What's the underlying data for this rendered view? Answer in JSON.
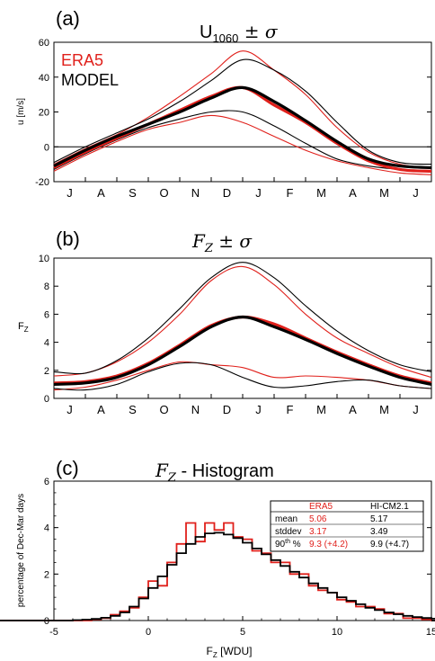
{
  "chart_data": [
    {
      "type": "line",
      "panel_label": "(a)",
      "title_main": "U",
      "title_sub": "1060",
      "title_tail": " ± σ",
      "ylabel": "u [m/s]",
      "ylim": [
        -20,
        60
      ],
      "yticks": [
        -20,
        0,
        20,
        40,
        60
      ],
      "xticks": [
        "J",
        "A",
        "S",
        "O",
        "N",
        "D",
        "J",
        "F",
        "M",
        "A",
        "M",
        "J"
      ],
      "legend": [
        {
          "name": "ERA5",
          "color": "#e0201b"
        },
        {
          "name": "MODEL",
          "color": "#000000"
        }
      ],
      "zero_line": true,
      "t": [
        0,
        1,
        2,
        3,
        4,
        5,
        6,
        7,
        8,
        9,
        10,
        11,
        12
      ],
      "series": [
        {
          "name": "ERA5",
          "color": "#e0201b",
          "role": "mean",
          "values": [
            -12,
            -3,
            5,
            13,
            21,
            29,
            34,
            24,
            14,
            2,
            -8,
            -13,
            -14
          ]
        },
        {
          "name": "ERA5",
          "color": "#e0201b",
          "role": "mean+sigma",
          "values": [
            -10,
            -1,
            7,
            17,
            29,
            42,
            55,
            44,
            30,
            11,
            -3,
            -10,
            -12
          ]
        },
        {
          "name": "ERA5",
          "color": "#e0201b",
          "role": "mean-sigma",
          "values": [
            -14,
            -5,
            3,
            10,
            14,
            18,
            14,
            6,
            -2,
            -8,
            -12,
            -15,
            -16
          ]
        },
        {
          "name": "MODEL",
          "color": "#000000",
          "role": "mean",
          "values": [
            -11,
            -2,
            6,
            13,
            20,
            28,
            34,
            26,
            15,
            3,
            -7,
            -11,
            -12
          ]
        },
        {
          "name": "MODEL",
          "color": "#000000",
          "role": "mean+sigma",
          "values": [
            -9,
            0,
            8,
            16,
            26,
            38,
            50,
            44,
            32,
            14,
            -2,
            -9,
            -10
          ]
        },
        {
          "name": "MODEL",
          "color": "#000000",
          "role": "mean-sigma",
          "values": [
            -13,
            -4,
            4,
            11,
            16,
            20,
            20,
            12,
            2,
            -7,
            -11,
            -13,
            -14
          ]
        }
      ]
    },
    {
      "type": "line",
      "panel_label": "(b)",
      "title_main": "F",
      "title_sub": "Z",
      "title_tail": " ± σ",
      "ylabel": "F",
      "ylabel_sub": "Z",
      "ylim": [
        0,
        10
      ],
      "yticks": [
        0,
        2,
        4,
        6,
        8,
        10
      ],
      "xticks": [
        "J",
        "A",
        "S",
        "O",
        "N",
        "D",
        "J",
        "F",
        "M",
        "A",
        "M",
        "J"
      ],
      "t": [
        0,
        1,
        2,
        3,
        4,
        5,
        6,
        7,
        8,
        9,
        10,
        11,
        12
      ],
      "series": [
        {
          "name": "ERA5",
          "color": "#e0201b",
          "role": "mean",
          "values": [
            1.1,
            1.2,
            1.6,
            2.5,
            3.8,
            5.2,
            5.8,
            5.3,
            4.3,
            3.3,
            2.4,
            1.6,
            1.1
          ]
        },
        {
          "name": "ERA5",
          "color": "#e0201b",
          "role": "mean+sigma",
          "values": [
            1.6,
            1.8,
            2.6,
            4.0,
            6.0,
            8.4,
            9.4,
            8.1,
            6.0,
            4.3,
            3.2,
            2.2,
            1.5
          ]
        },
        {
          "name": "ERA5",
          "color": "#e0201b",
          "role": "mean-sigma",
          "values": [
            0.6,
            0.8,
            1.3,
            2.0,
            2.6,
            2.4,
            2.2,
            1.5,
            1.6,
            1.5,
            1.3,
            0.9,
            0.7
          ]
        },
        {
          "name": "MODEL",
          "color": "#000000",
          "role": "mean",
          "values": [
            1.0,
            1.1,
            1.5,
            2.4,
            3.7,
            5.1,
            5.8,
            5.1,
            4.2,
            3.2,
            2.3,
            1.5,
            1.0
          ]
        },
        {
          "name": "MODEL",
          "color": "#000000",
          "role": "mean+sigma",
          "values": [
            1.9,
            1.8,
            2.7,
            4.3,
            6.4,
            8.6,
            9.7,
            8.6,
            6.6,
            4.8,
            3.4,
            2.4,
            1.9
          ]
        },
        {
          "name": "MODEL",
          "color": "#000000",
          "role": "mean-sigma",
          "values": [
            0.7,
            0.6,
            1.0,
            1.9,
            2.5,
            2.4,
            1.5,
            0.8,
            0.9,
            1.2,
            1.3,
            0.9,
            0.7
          ]
        }
      ]
    },
    {
      "type": "bar",
      "panel_label": "(c)",
      "title_main": "F",
      "title_sub": "Z",
      "title_tail": " - Histogram",
      "ylabel": "percentage of Dec-Mar days",
      "xlabel": "F",
      "xlabel_sub": "Z",
      "xlabel_tail": " [WDU]",
      "xlim": [
        -5,
        15
      ],
      "ylim": [
        0,
        6
      ],
      "xticks": [
        -5,
        0,
        5,
        10,
        15
      ],
      "yticks": [
        0,
        2,
        4,
        6
      ],
      "bin_width": 0.5,
      "bin_start": -4,
      "series": [
        {
          "name": "HI-CM2.1",
          "color": "#000000",
          "values": [
            0.02,
            0.04,
            0.07,
            0.12,
            0.2,
            0.35,
            0.6,
            0.95,
            1.4,
            1.9,
            2.4,
            2.9,
            3.3,
            3.6,
            3.75,
            3.78,
            3.7,
            3.55,
            3.35,
            3.1,
            2.85,
            2.6,
            2.35,
            2.1,
            1.85,
            1.6,
            1.4,
            1.2,
            1.0,
            0.85,
            0.7,
            0.55,
            0.45,
            0.35,
            0.27,
            0.2,
            0.15,
            0.11,
            0.08
          ]
        },
        {
          "name": "ERA5",
          "color": "#e0201b",
          "values": [
            0.0,
            0.0,
            0.05,
            0.1,
            0.25,
            0.4,
            0.55,
            1.0,
            1.7,
            1.5,
            2.5,
            3.3,
            4.2,
            3.4,
            4.2,
            3.9,
            4.2,
            3.6,
            3.5,
            3.0,
            2.9,
            2.5,
            2.5,
            2.0,
            2.0,
            1.5,
            1.3,
            1.2,
            0.9,
            0.8,
            0.6,
            0.6,
            0.5,
            0.3,
            0.3,
            0.1,
            0.1,
            0.05,
            0.0
          ]
        }
      ],
      "stats_table": {
        "headers": [
          "",
          "ERA5",
          "HI-CM2.1"
        ],
        "rows": [
          {
            "label": "mean",
            "era5": "5.06",
            "model": "5.17"
          },
          {
            "label": "stddev",
            "era5": "3.17",
            "model": "3.49"
          },
          {
            "label": "90",
            "label_sup": "th",
            "label_tail": " %",
            "era5": "9.3 (+4.2)",
            "model": "9.9 (+4.7)"
          }
        ]
      }
    }
  ]
}
